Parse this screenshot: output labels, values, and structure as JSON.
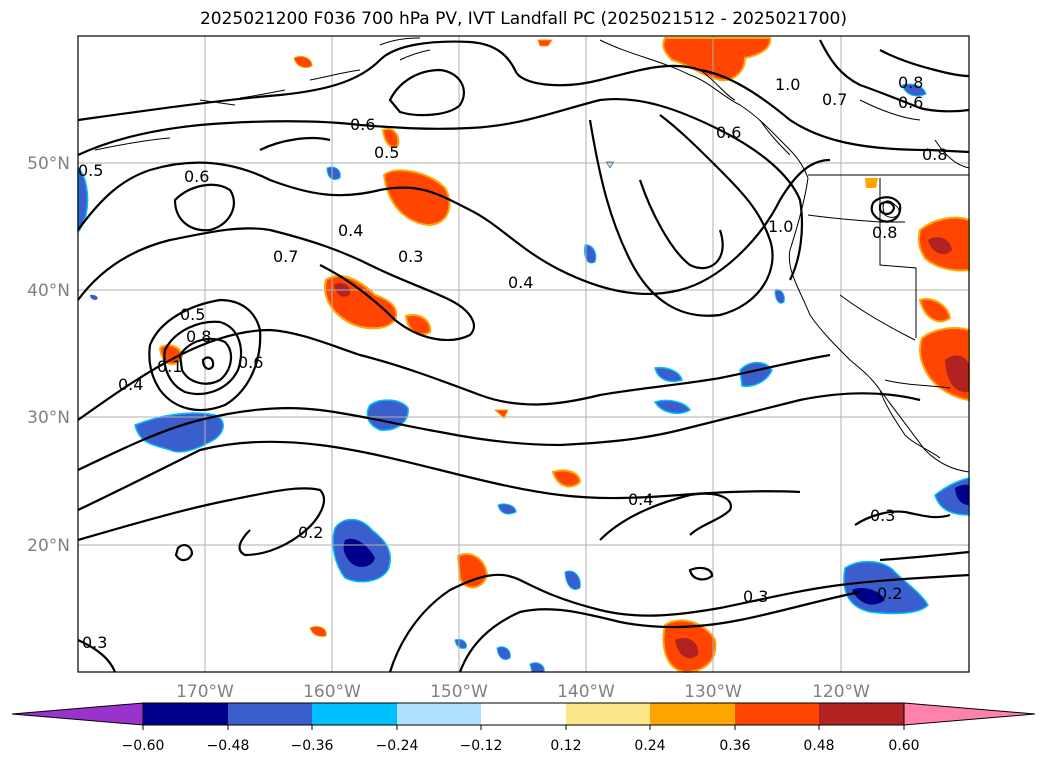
{
  "title": "2025021200 F036 700 hPa PV, IVT Landfall PC (2025021512 - 2025021700)",
  "map": {
    "longitude_ticks": [
      "170°W",
      "160°W",
      "150°W",
      "140°W",
      "130°W",
      "120°W"
    ],
    "latitude_ticks": [
      "50°N",
      "40°N",
      "30°N",
      "20°N"
    ],
    "contour_labels": [
      "0.6",
      "0.5",
      "0.6",
      "0.4",
      "0.3",
      "0.7",
      "0.5",
      "0.8",
      "0.4",
      "0.4",
      "0.6",
      "0.1",
      "0.2",
      "0.4",
      "0.3",
      "0.3",
      "0.2",
      "0.3",
      "1.0",
      "0.8",
      "0.6",
      "0.7",
      "0.6",
      "0.8",
      "0.8",
      "1.0",
      "0.5"
    ],
    "grid": true
  },
  "colorbar": {
    "ticks": [
      "−0.60",
      "−0.48",
      "−0.36",
      "−0.24",
      "−0.12",
      "0.12",
      "0.24",
      "0.36",
      "0.48",
      "0.60"
    ],
    "colors": [
      "#9a32cd",
      "#00008b",
      "#3a5fcd",
      "#00bfff",
      "#b0e2ff",
      "#ffffff",
      "#fde68a",
      "#ffa500",
      "#ff4500",
      "#b22222",
      "#ff82ab"
    ],
    "extend": "both"
  }
}
